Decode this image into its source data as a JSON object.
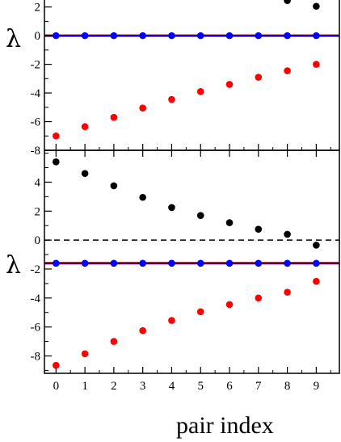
{
  "chart_data": [
    {
      "type": "scatter",
      "panel": "top",
      "ylabel": "λ",
      "xlabel": "",
      "xlim": [
        -0.4,
        9.8
      ],
      "ylim": [
        -8,
        2.6
      ],
      "yticks": [
        -8,
        -6,
        -4,
        -2,
        0,
        2
      ],
      "ytick_labels": [
        "-8",
        "-6",
        "-4",
        "-2",
        "0",
        "2"
      ],
      "x": [
        0,
        1,
        2,
        3,
        4,
        5,
        6,
        7,
        8,
        9
      ],
      "series": [
        {
          "color": "#000000",
          "x": [
            8,
            9
          ],
          "values": [
            2.45,
            2.05
          ]
        },
        {
          "color": "#0000ff",
          "x": [
            0,
            1,
            2,
            3,
            4,
            5,
            6,
            7,
            8,
            9
          ],
          "values": [
            0,
            0,
            0,
            0,
            0,
            0,
            0,
            0,
            0,
            0
          ]
        },
        {
          "color": "#ff0000",
          "x": [
            0,
            1,
            2,
            3,
            4,
            5,
            6,
            7,
            8,
            9
          ],
          "values": [
            -7.0,
            -6.35,
            -5.7,
            -5.05,
            -4.45,
            -3.9,
            -3.4,
            -2.9,
            -2.45,
            -2.0
          ]
        }
      ],
      "hlines": [
        {
          "y": 0,
          "color": "#800000",
          "style": "solid"
        },
        {
          "y": 0,
          "color": "#0000ff",
          "style": "solid"
        }
      ]
    },
    {
      "type": "scatter",
      "panel": "bottom",
      "ylabel": "λ",
      "xlabel": "pair index",
      "xlim": [
        -0.4,
        9.8
      ],
      "ylim": [
        -9.2,
        6.2
      ],
      "yticks": [
        -8,
        -6,
        -4,
        -2,
        0,
        2,
        4
      ],
      "ytick_labels": [
        "-8",
        "-6",
        "-4",
        "-2",
        "0",
        "2",
        "4"
      ],
      "xticks": [
        0,
        1,
        2,
        3,
        4,
        5,
        6,
        7,
        8,
        9
      ],
      "xtick_labels": [
        "0",
        "1",
        "2",
        "3",
        "4",
        "5",
        "6",
        "7",
        "8",
        "9"
      ],
      "series": [
        {
          "color": "#000000",
          "x": [
            0,
            1,
            2,
            3,
            4,
            5,
            6,
            7,
            8,
            9
          ],
          "values": [
            5.4,
            4.6,
            3.75,
            2.95,
            2.25,
            1.7,
            1.2,
            0.75,
            0.4,
            -0.35
          ]
        },
        {
          "color": "#0000ff",
          "x": [
            0,
            1,
            2,
            3,
            4,
            5,
            6,
            7,
            8,
            9
          ],
          "values": [
            -1.6,
            -1.6,
            -1.6,
            -1.6,
            -1.6,
            -1.6,
            -1.6,
            -1.6,
            -1.6,
            -1.6
          ]
        },
        {
          "color": "#ff0000",
          "x": [
            0,
            1,
            2,
            3,
            4,
            5,
            6,
            7,
            8,
            9
          ],
          "values": [
            -8.65,
            -7.85,
            -7.0,
            -6.25,
            -5.55,
            -4.95,
            -4.45,
            -4.0,
            -3.6,
            -2.85
          ]
        }
      ],
      "hlines": [
        {
          "y": 0,
          "color": "#000000",
          "style": "dashed"
        },
        {
          "y": -1.6,
          "color": "#800000",
          "style": "solid"
        },
        {
          "y": -1.6,
          "color": "#0000ff",
          "style": "solid"
        }
      ]
    }
  ]
}
